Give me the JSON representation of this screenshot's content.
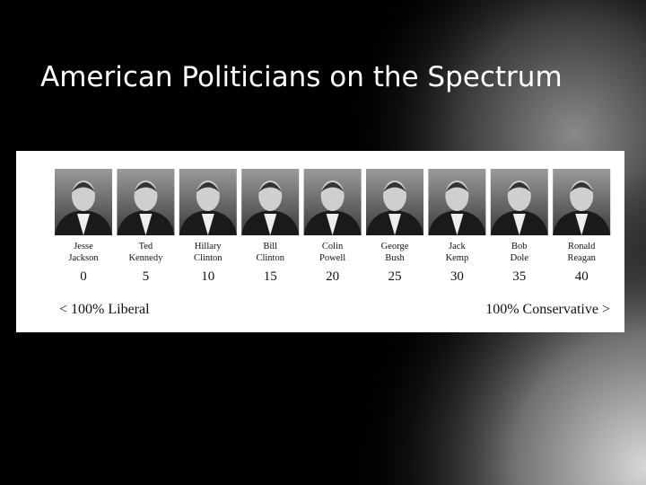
{
  "slide": {
    "title": "American Politicians on the Spectrum",
    "politicians": [
      {
        "first": "Jesse",
        "last": "Jackson",
        "score": 0
      },
      {
        "first": "Ted",
        "last": "Kennedy",
        "score": 5
      },
      {
        "first": "Hillary",
        "last": "Clinton",
        "score": 10
      },
      {
        "first": "Bill",
        "last": "Clinton",
        "score": 15
      },
      {
        "first": "Colin",
        "last": "Powell",
        "score": 20
      },
      {
        "first": "George",
        "last": "Bush",
        "score": 25
      },
      {
        "first": "Jack",
        "last": "Kemp",
        "score": 30
      },
      {
        "first": "Bob",
        "last": "Dole",
        "score": 35
      },
      {
        "first": "Ronald",
        "last": "Reagan",
        "score": 40
      }
    ],
    "left_label": "< 100% Liberal",
    "right_label": "100% Conservative >"
  }
}
